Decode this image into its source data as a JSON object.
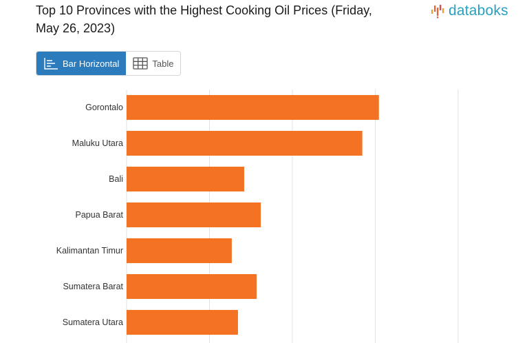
{
  "header": {
    "title": "Top 10 Provinces with the Highest Cooking Oil Prices (Friday, May 26, 2023)",
    "logo_text": "databoks"
  },
  "view_toggle": {
    "bar_label": "Bar Horizontal",
    "table_label": "Table",
    "active": "bar"
  },
  "colors": {
    "bar": "#f37224",
    "active_button": "#2b7bbd",
    "logo": "#2a9fc0",
    "logo_mark": "#e8643c"
  },
  "chart_data": {
    "type": "bar",
    "orientation": "horizontal",
    "categories": [
      "Gorontalo",
      "Maluku Utara",
      "Bali",
      "Papua Barat",
      "Kalimantan Timur",
      "Sumatera Barat",
      "Sumatera Utara"
    ],
    "values": [
      24350,
      22750,
      11350,
      12950,
      10150,
      12550,
      10750
    ],
    "xlim": [
      0,
      32000
    ],
    "grid": true
  }
}
